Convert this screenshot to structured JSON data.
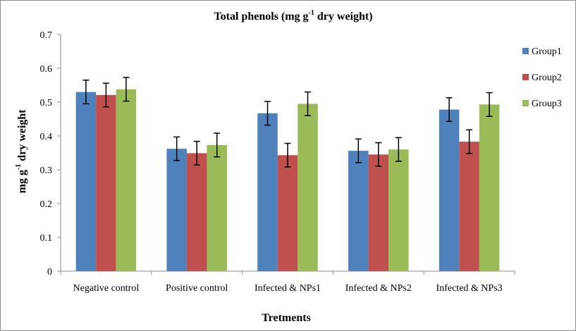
{
  "chart_data": {
    "type": "bar",
    "title": "Total phenols (mg g",
    "title_sup": "-1",
    "title_end": " dry weight)",
    "xlabel": "Tretments",
    "ylabel_main": "mg g",
    "ylabel_sup": "-1",
    "ylabel_end": " dry weight",
    "categories": [
      "Negative control",
      "Positive control",
      "Infected & NPs1",
      "Infected & NPs2",
      "Infected & NPs3"
    ],
    "ylim": [
      0,
      0.7
    ],
    "yticks": [
      "0",
      "0.1",
      "0.2",
      "0.3",
      "0.4",
      "0.5",
      "0.6",
      "0.7"
    ],
    "grid": false,
    "legend_position": "right",
    "series": [
      {
        "name": "Group1",
        "color": "#4f81bd",
        "values": [
          0.53,
          0.362,
          0.467,
          0.356,
          0.478
        ],
        "errors": [
          0.035,
          0.035,
          0.035,
          0.035,
          0.035
        ]
      },
      {
        "name": "Group2",
        "color": "#c0504d",
        "values": [
          0.521,
          0.349,
          0.343,
          0.345,
          0.383
        ],
        "errors": [
          0.035,
          0.035,
          0.035,
          0.035,
          0.035
        ]
      },
      {
        "name": "Group3",
        "color": "#9bbb59",
        "values": [
          0.538,
          0.373,
          0.495,
          0.36,
          0.493
        ],
        "errors": [
          0.035,
          0.035,
          0.035,
          0.035,
          0.035
        ]
      }
    ]
  }
}
